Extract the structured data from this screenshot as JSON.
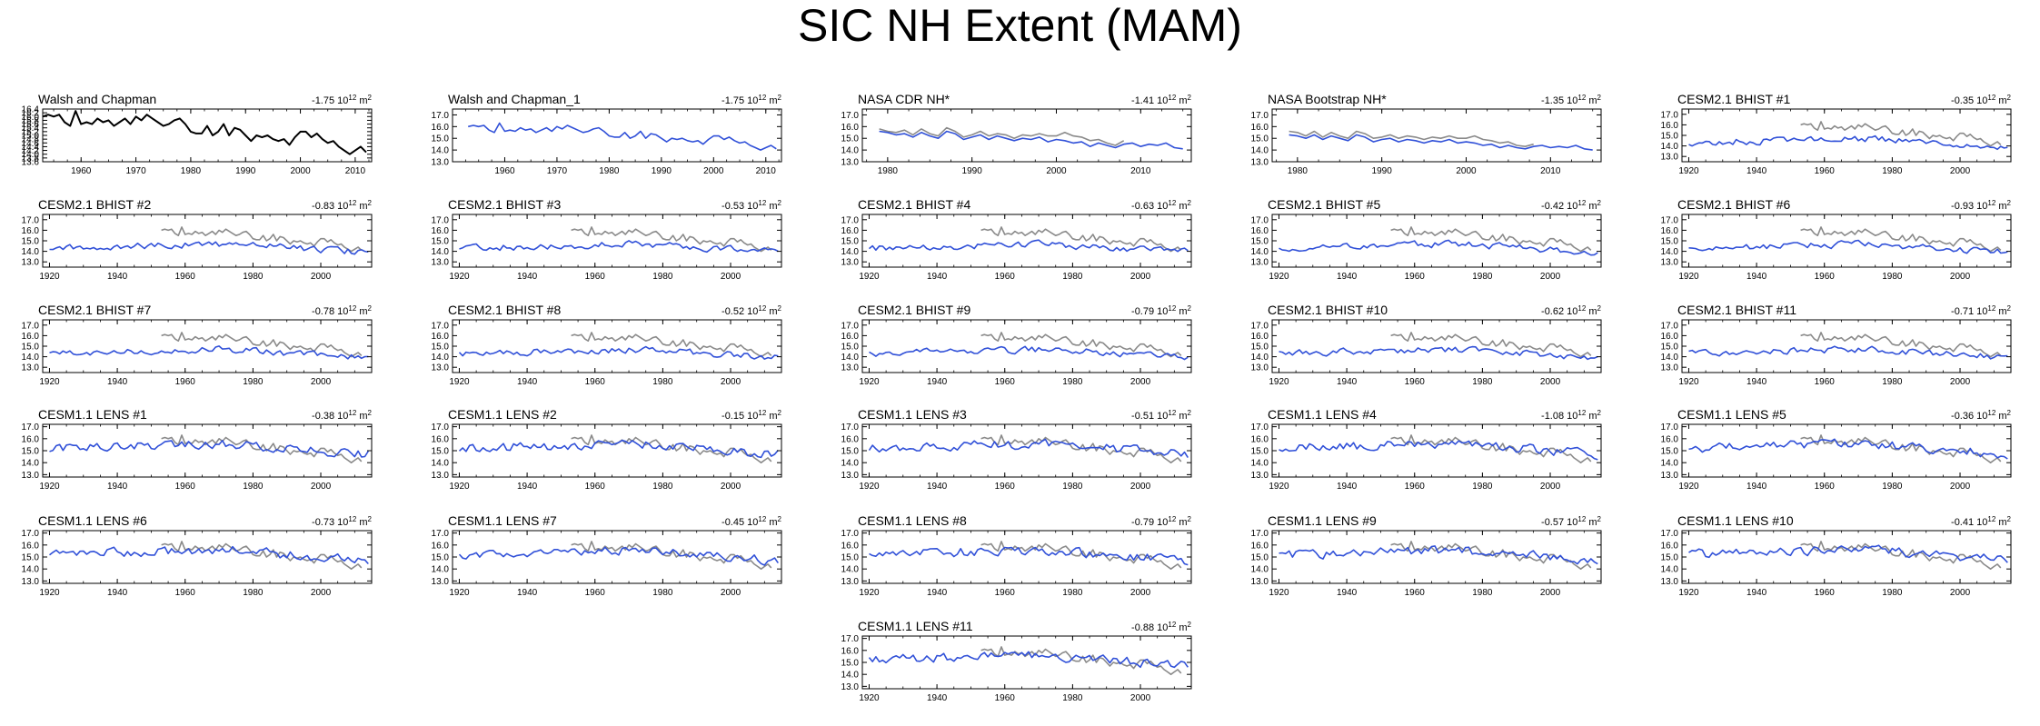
{
  "page_title": "SIC NH Extent (MAM)",
  "colors": {
    "model": "#3050d8",
    "obs_overlay": "#8a8a8a",
    "observation": "#000000",
    "frame": "#000000"
  },
  "chart_data": {
    "type": "line",
    "title": "SIC NH Extent (MAM)",
    "trend_units": "10^12 m^2",
    "panels": [
      {
        "title": "Walsh and Chapman",
        "trend": "-1.75",
        "kind": "obs",
        "xlim": [
          1953,
          2013
        ],
        "ylim": [
          13.6,
          16.4
        ],
        "xticks": [
          1960,
          1970,
          1980,
          1990,
          2000,
          2010
        ],
        "yticks": [
          "13.6",
          "13.8",
          "14.0",
          "14.2",
          "14.4",
          "14.6",
          "14.8",
          "15.0",
          "15.2",
          "15.4",
          "15.6",
          "15.8",
          "16.0",
          "16.2",
          "16.4"
        ],
        "start": 1953,
        "series_key": "wc"
      },
      {
        "title": "Walsh and Chapman_1",
        "trend": "-1.75",
        "kind": "model",
        "xlim": [
          1950,
          2013
        ],
        "ylim": [
          13.0,
          17.5
        ],
        "xticks": [
          1960,
          1970,
          1980,
          1990,
          2000,
          2010
        ],
        "yticks": [
          "13.0",
          "14.0",
          "15.0",
          "16.0",
          "17.0"
        ],
        "start": 1953,
        "series_key": "wc"
      },
      {
        "title": "NASA CDR NH*",
        "trend": "-1.41",
        "kind": "model",
        "xlim": [
          1977,
          2016
        ],
        "ylim": [
          13.0,
          17.5
        ],
        "xticks": [
          1980,
          1990,
          2000,
          2010
        ],
        "yticks": [
          "13.0",
          "14.0",
          "15.0",
          "16.0",
          "17.0"
        ],
        "start": 1979,
        "series_key": "cdr",
        "overlay": {
          "start": 1979,
          "series_key": "cdr_ov"
        }
      },
      {
        "title": "NASA Bootstrap NH*",
        "trend": "-1.35",
        "kind": "model",
        "xlim": [
          1977,
          2016
        ],
        "ylim": [
          13.0,
          17.5
        ],
        "xticks": [
          1980,
          1990,
          2000,
          2010
        ],
        "yticks": [
          "13.0",
          "14.0",
          "15.0",
          "16.0",
          "17.0"
        ],
        "start": 1979,
        "series_key": "bt",
        "overlay": {
          "start": 1979,
          "series_key": "bt_ov"
        }
      },
      {
        "title": "CESM2.1 BHIST #1",
        "trend": "-0.35",
        "kind": "cesm2",
        "seed": 101
      },
      {
        "title": "CESM2.1 BHIST #2",
        "trend": "-0.83",
        "kind": "cesm2",
        "seed": 102
      },
      {
        "title": "CESM2.1 BHIST #3",
        "trend": "-0.53",
        "kind": "cesm2",
        "seed": 103
      },
      {
        "title": "CESM2.1 BHIST #4",
        "trend": "-0.63",
        "kind": "cesm2",
        "seed": 104
      },
      {
        "title": "CESM2.1 BHIST #5",
        "trend": "-0.42",
        "kind": "cesm2",
        "seed": 105
      },
      {
        "title": "CESM2.1 BHIST #6",
        "trend": "-0.93",
        "kind": "cesm2",
        "seed": 106
      },
      {
        "title": "CESM2.1 BHIST #7",
        "trend": "-0.78",
        "kind": "cesm2",
        "seed": 107
      },
      {
        "title": "CESM2.1 BHIST #8",
        "trend": "-0.52",
        "kind": "cesm2",
        "seed": 108
      },
      {
        "title": "CESM2.1 BHIST #9",
        "trend": "-0.79",
        "kind": "cesm2",
        "seed": 109
      },
      {
        "title": "CESM2.1 BHIST #10",
        "trend": "-0.62",
        "kind": "cesm2",
        "seed": 110
      },
      {
        "title": "CESM2.1 BHIST #11",
        "trend": "-0.71",
        "kind": "cesm2",
        "seed": 111
      },
      {
        "title": "CESM1.1 LENS #1",
        "trend": "-0.38",
        "kind": "lens",
        "seed": 201
      },
      {
        "title": "CESM1.1 LENS #2",
        "trend": "-0.15",
        "kind": "lens",
        "seed": 202
      },
      {
        "title": "CESM1.1 LENS #3",
        "trend": "-0.51",
        "kind": "lens",
        "seed": 203
      },
      {
        "title": "CESM1.1 LENS #4",
        "trend": "-1.08",
        "kind": "lens",
        "seed": 204
      },
      {
        "title": "CESM1.1 LENS #5",
        "trend": "-0.36",
        "kind": "lens",
        "seed": 205
      },
      {
        "title": "CESM1.1 LENS #6",
        "trend": "-0.73",
        "kind": "lens",
        "seed": 206
      },
      {
        "title": "CESM1.1 LENS #7",
        "trend": "-0.45",
        "kind": "lens",
        "seed": 207
      },
      {
        "title": "CESM1.1 LENS #8",
        "trend": "-0.79",
        "kind": "lens",
        "seed": 208
      },
      {
        "title": "CESM1.1 LENS #9",
        "trend": "-0.57",
        "kind": "lens",
        "seed": 209
      },
      {
        "title": "CESM1.1 LENS #10",
        "trend": "-0.41",
        "kind": "lens",
        "seed": 210
      },
      {
        "title": "CESM1.1 LENS #11",
        "trend": "-0.88",
        "kind": "lens",
        "seed": 211
      }
    ],
    "model_defaults": {
      "cesm2": {
        "xlim": [
          1918,
          2015
        ],
        "ylim": [
          12.5,
          17.5
        ],
        "xticks": [
          1920,
          1940,
          1960,
          1980,
          2000
        ],
        "yticks": [
          "13.0",
          "14.0",
          "15.0",
          "16.0",
          "17.0"
        ],
        "start": 1920,
        "end": 2014,
        "mean_start": 14.3,
        "mean_mid": 14.7,
        "mean_end": 13.9,
        "noise": 0.28,
        "overlay": {
          "start": 1953,
          "series_key": "wc"
        }
      },
      "lens": {
        "xlim": [
          1918,
          2015
        ],
        "ylim": [
          12.8,
          17.2
        ],
        "xticks": [
          1920,
          1940,
          1960,
          1980,
          2000
        ],
        "yticks": [
          "13.0",
          "14.0",
          "15.0",
          "16.0",
          "17.0"
        ],
        "start": 1920,
        "end": 2014,
        "mean_start": 15.2,
        "mean_mid": 15.6,
        "mean_end": 14.7,
        "noise": 0.35,
        "overlay": {
          "start": 1953,
          "series_key": "wc"
        }
      }
    },
    "series": {
      "wc": [
        16.0,
        16.1,
        16.0,
        16.1,
        15.7,
        15.5,
        16.3,
        15.6,
        15.7,
        15.6,
        15.9,
        15.7,
        15.8,
        15.5,
        15.7,
        15.9,
        15.6,
        16.0,
        15.8,
        16.1,
        15.9,
        15.7,
        15.5,
        15.6,
        15.8,
        15.9,
        15.6,
        15.2,
        15.1,
        15.1,
        15.5,
        15.0,
        15.2,
        15.6,
        15.0,
        15.4,
        15.3,
        15.0,
        14.7,
        15.0,
        14.9,
        15.0,
        14.8,
        14.7,
        14.8,
        14.5,
        14.9,
        15.2,
        15.2,
        14.9,
        15.1,
        14.8,
        14.6,
        14.7,
        14.4,
        14.2,
        14.0,
        14.2,
        14.4,
        14.1
      ],
      "cdr": [
        15.6,
        15.5,
        15.3,
        15.4,
        15.1,
        15.5,
        15.2,
        15.0,
        15.6,
        15.4,
        14.9,
        15.1,
        15.3,
        14.9,
        15.2,
        15.0,
        14.8,
        15.0,
        14.9,
        15.1,
        14.7,
        14.9,
        14.8,
        14.6,
        14.7,
        14.3,
        14.6,
        14.4,
        14.2,
        14.5,
        14.6,
        14.3,
        14.5,
        14.4,
        14.6,
        14.2,
        14.1
      ],
      "cdr_ov": [
        15.8,
        15.6,
        15.5,
        15.7,
        15.3,
        15.8,
        15.4,
        15.2,
        15.9,
        15.6,
        15.1,
        15.3,
        15.6,
        15.2,
        15.4,
        15.3,
        15.0,
        15.3,
        15.2,
        15.4,
        15.2,
        15.2,
        15.5,
        15.2,
        15.1,
        14.8,
        14.9,
        14.6,
        14.4,
        14.8
      ],
      "bt": [
        15.3,
        15.2,
        15.0,
        15.3,
        14.9,
        15.2,
        15.0,
        14.8,
        15.3,
        15.1,
        14.7,
        14.9,
        15.0,
        14.7,
        14.9,
        14.8,
        14.6,
        14.8,
        14.7,
        14.9,
        14.6,
        14.7,
        14.6,
        14.4,
        14.5,
        14.2,
        14.4,
        14.2,
        14.1,
        14.3,
        14.4,
        14.2,
        14.3,
        14.2,
        14.4,
        14.1,
        14.0
      ],
      "bt_ov": [
        15.6,
        15.5,
        15.2,
        15.6,
        15.1,
        15.5,
        15.2,
        15.0,
        15.6,
        15.4,
        15.0,
        15.1,
        15.3,
        15.0,
        15.2,
        15.1,
        14.9,
        15.1,
        15.0,
        15.2,
        15.0,
        15.0,
        15.2,
        14.9,
        14.8,
        14.6,
        14.7,
        14.4,
        14.3,
        14.5
      ]
    }
  }
}
